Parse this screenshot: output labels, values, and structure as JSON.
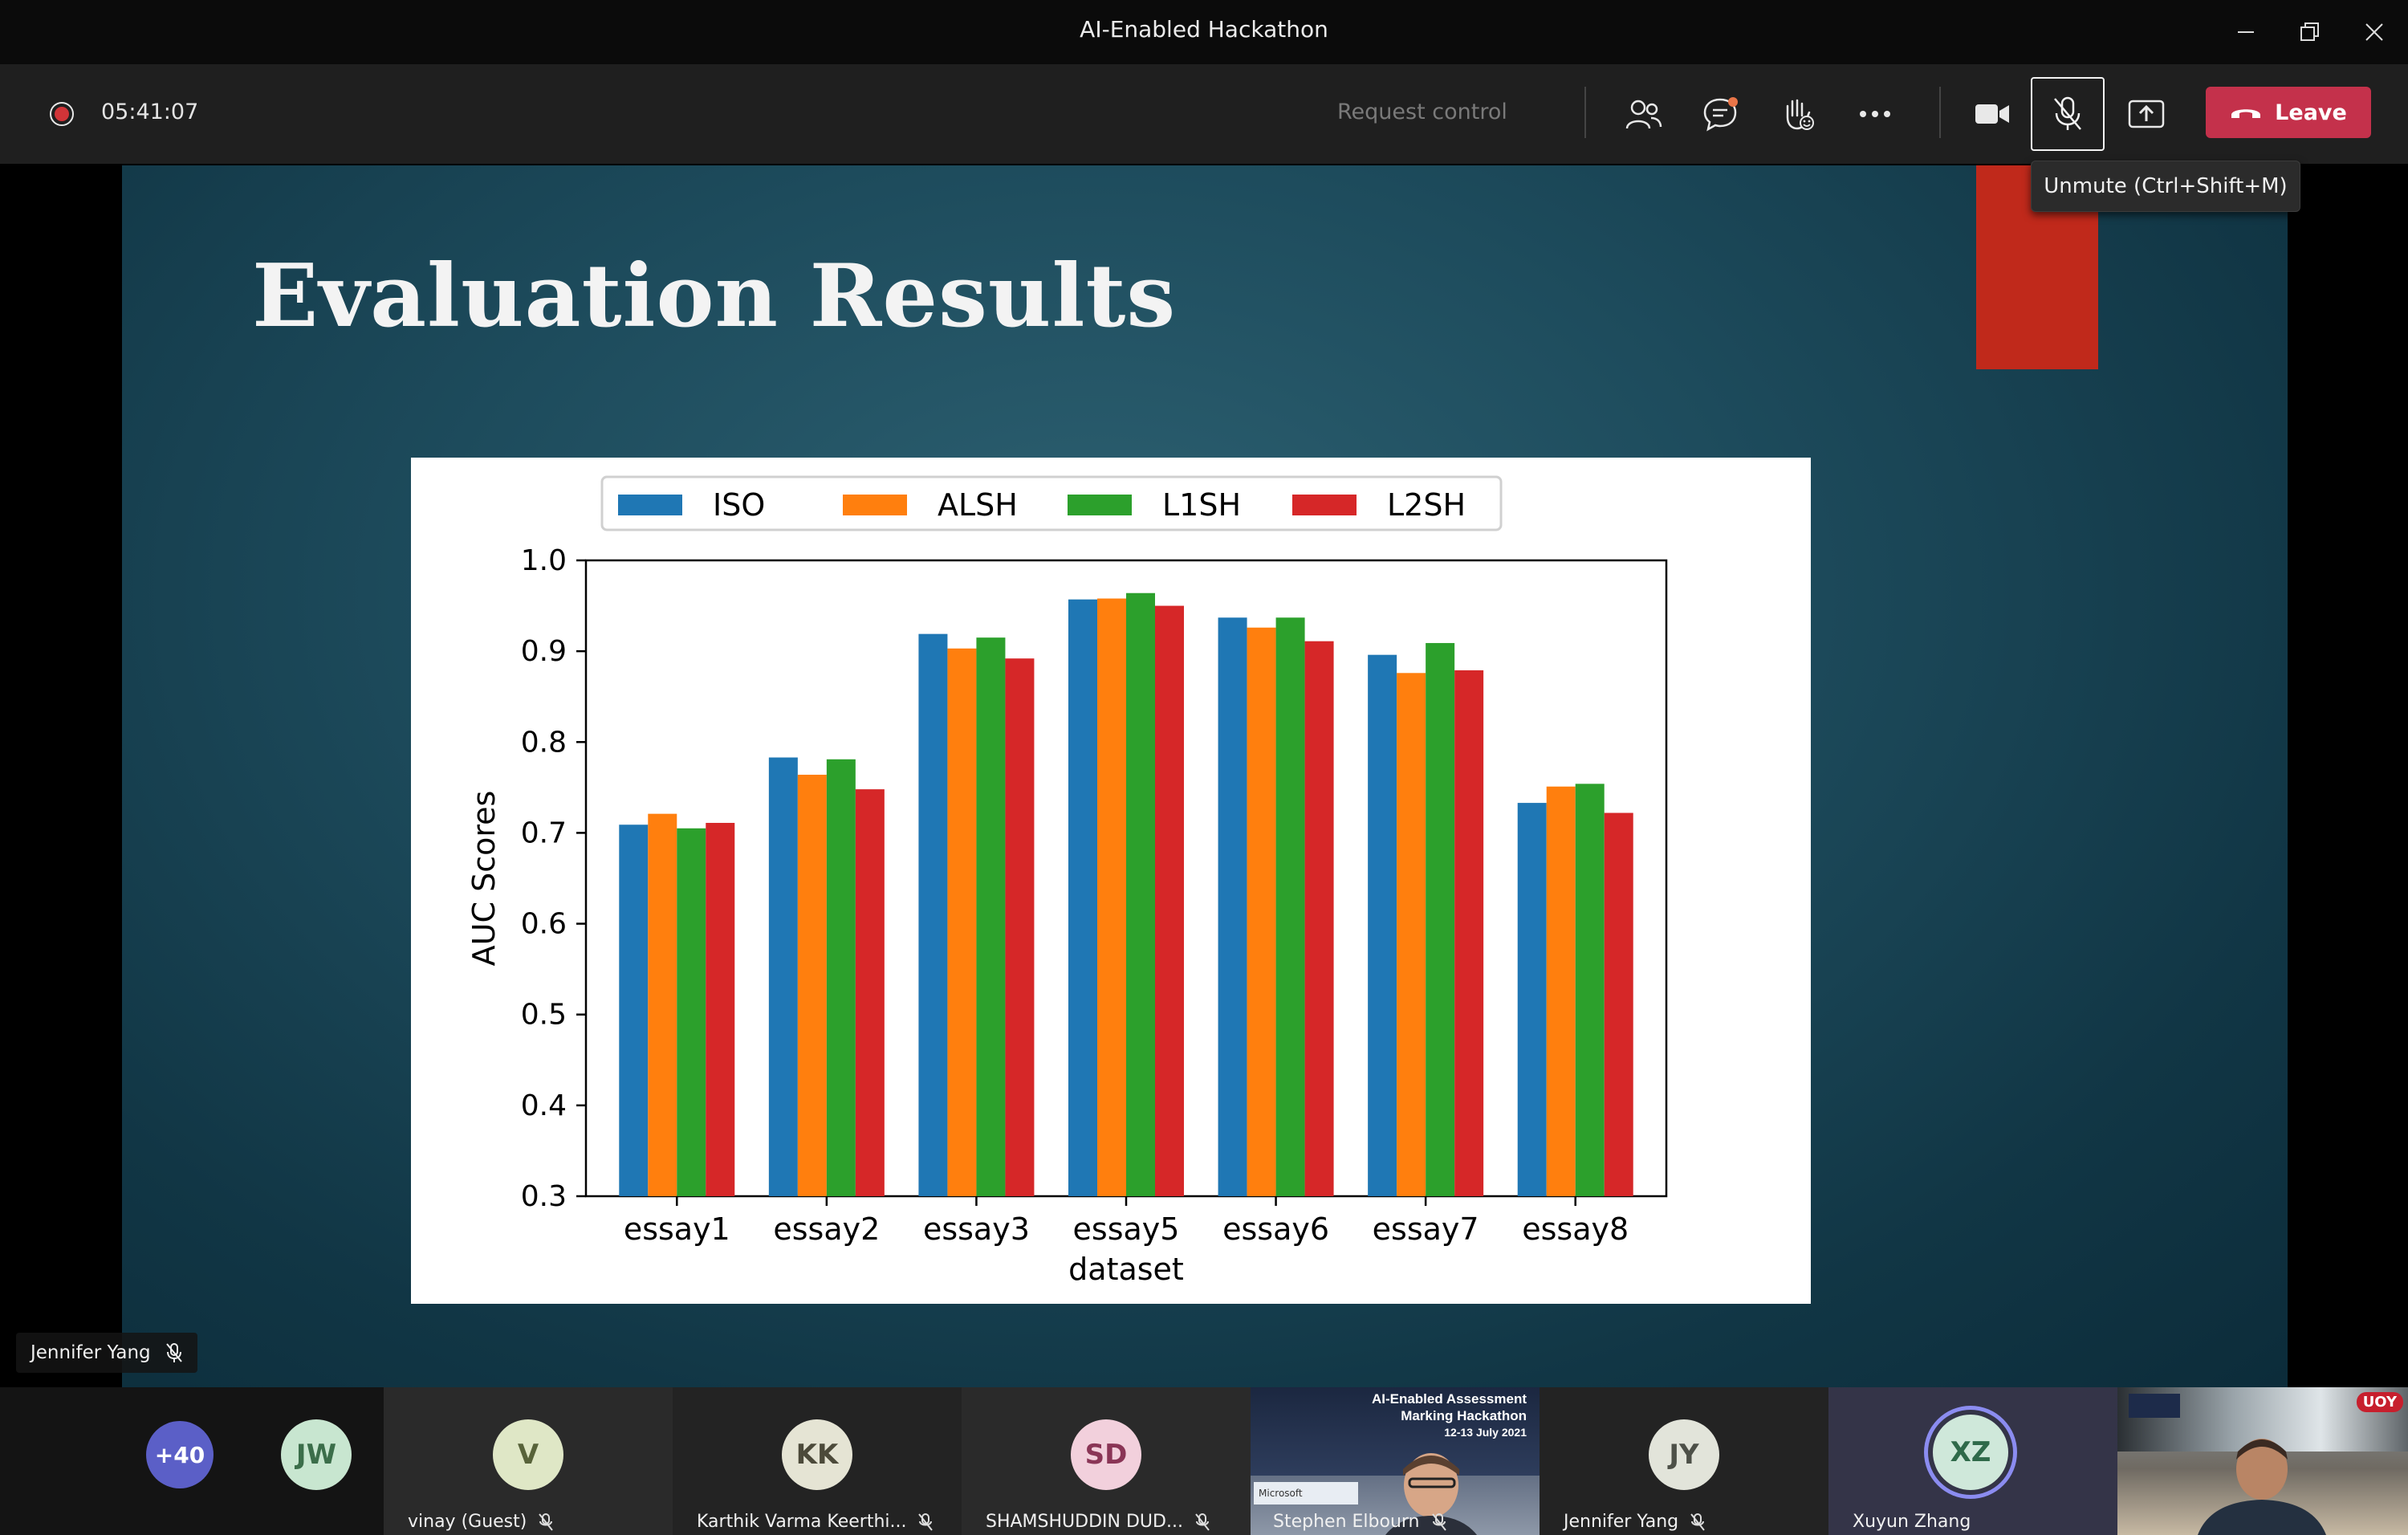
{
  "window": {
    "title": "AI-Enabled Hackathon"
  },
  "toolbar": {
    "timer": "05:41:07",
    "request_control": "Request control",
    "leave_label": "Leave",
    "mic_tooltip": "Unmute (Ctrl+Shift+M)"
  },
  "slide": {
    "title": "Evaluation Results",
    "chart_data": {
      "type": "bar",
      "title": "",
      "xlabel": "dataset",
      "ylabel": "AUC Scores",
      "ylim": [
        0.3,
        1.0
      ],
      "yticks": [
        "0.3",
        "0.4",
        "0.5",
        "0.6",
        "0.7",
        "0.8",
        "0.9",
        "1.0"
      ],
      "categories": [
        "essay1",
        "essay2",
        "essay3",
        "essay5",
        "essay6",
        "essay7",
        "essay8"
      ],
      "legend_position": "top",
      "grid": false,
      "series": [
        {
          "name": "ISO",
          "color": "#1f77b4",
          "values": [
            0.709,
            0.783,
            0.919,
            0.957,
            0.937,
            0.896,
            0.733
          ]
        },
        {
          "name": "ALSH",
          "color": "#ff7f0e",
          "values": [
            0.721,
            0.764,
            0.903,
            0.958,
            0.926,
            0.876,
            0.751
          ]
        },
        {
          "name": "L1SH",
          "color": "#2ca02c",
          "values": [
            0.705,
            0.781,
            0.915,
            0.964,
            0.937,
            0.909,
            0.754
          ]
        },
        {
          "name": "L2SH",
          "color": "#d62728",
          "values": [
            0.711,
            0.748,
            0.892,
            0.95,
            0.911,
            0.879,
            0.722
          ]
        }
      ]
    }
  },
  "presenter": {
    "name": "Jennifer Yang"
  },
  "participants": [
    {
      "kind": "overflow",
      "initials": "+40",
      "name": ""
    },
    {
      "kind": "avatar",
      "initials": "JW",
      "name": ""
    },
    {
      "kind": "avatar",
      "initials": "V",
      "name": "vinay (Guest)"
    },
    {
      "kind": "avatar",
      "initials": "KK",
      "name": "Karthik Varma Keerthi..."
    },
    {
      "kind": "avatar",
      "initials": "SD",
      "name": "SHAMSHUDDIN DUD..."
    },
    {
      "kind": "video",
      "initials": "",
      "name": "Stephen Elbourn"
    },
    {
      "kind": "avatar",
      "initials": "JY",
      "name": "Jennifer Yang"
    },
    {
      "kind": "avatar",
      "initials": "XZ",
      "name": "Xuyun Zhang"
    },
    {
      "kind": "video",
      "initials": "",
      "name": ""
    }
  ],
  "video_thumb": {
    "line1": "AI-Enabled Assessment",
    "line2": "Marking Hackathon",
    "line3": "12-13 July 2021",
    "logo1": "Microsoft",
    "corner_badge": "UOY"
  }
}
